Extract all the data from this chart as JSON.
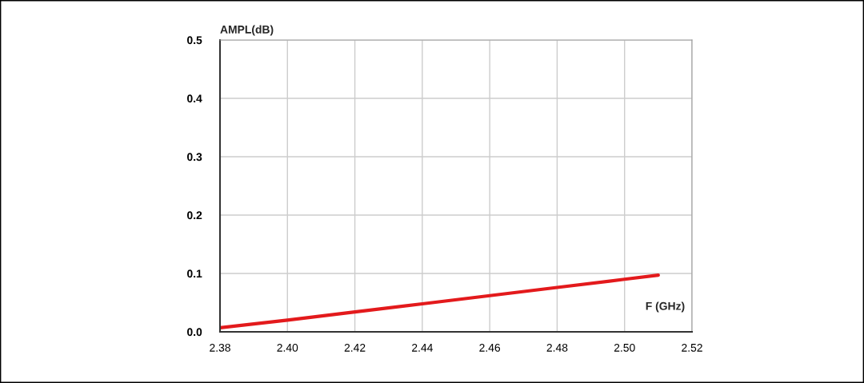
{
  "chart_data": {
    "type": "line",
    "xlabel": "F (GHz)",
    "ylabel": "AMPL(dB)",
    "x": [
      2.38,
      2.4,
      2.42,
      2.44,
      2.46,
      2.48,
      2.5,
      2.51
    ],
    "series": [
      {
        "color": "#e31a1c",
        "values": [
          0.007,
          0.02,
          0.034,
          0.048,
          0.062,
          0.076,
          0.09,
          0.097
        ]
      }
    ],
    "xlim": [
      2.38,
      2.52
    ],
    "xticks": [
      {
        "value": 2.38,
        "label": "2.38"
      },
      {
        "value": 2.4,
        "label": "2.40"
      },
      {
        "value": 2.42,
        "label": "2.42"
      },
      {
        "value": 2.44,
        "label": "2.44"
      },
      {
        "value": 2.46,
        "label": "2.46"
      },
      {
        "value": 2.48,
        "label": "2.48"
      },
      {
        "value": 2.5,
        "label": "2.50"
      },
      {
        "value": 2.52,
        "label": "2.52"
      }
    ],
    "ylim": [
      0,
      0.5
    ],
    "yticks": [
      {
        "value": 0,
        "label": "0.0"
      },
      0.1,
      0.2,
      0.3,
      0.4,
      0.5
    ],
    "grid": true,
    "marker": "none",
    "line_style": "solid",
    "legend": false
  }
}
